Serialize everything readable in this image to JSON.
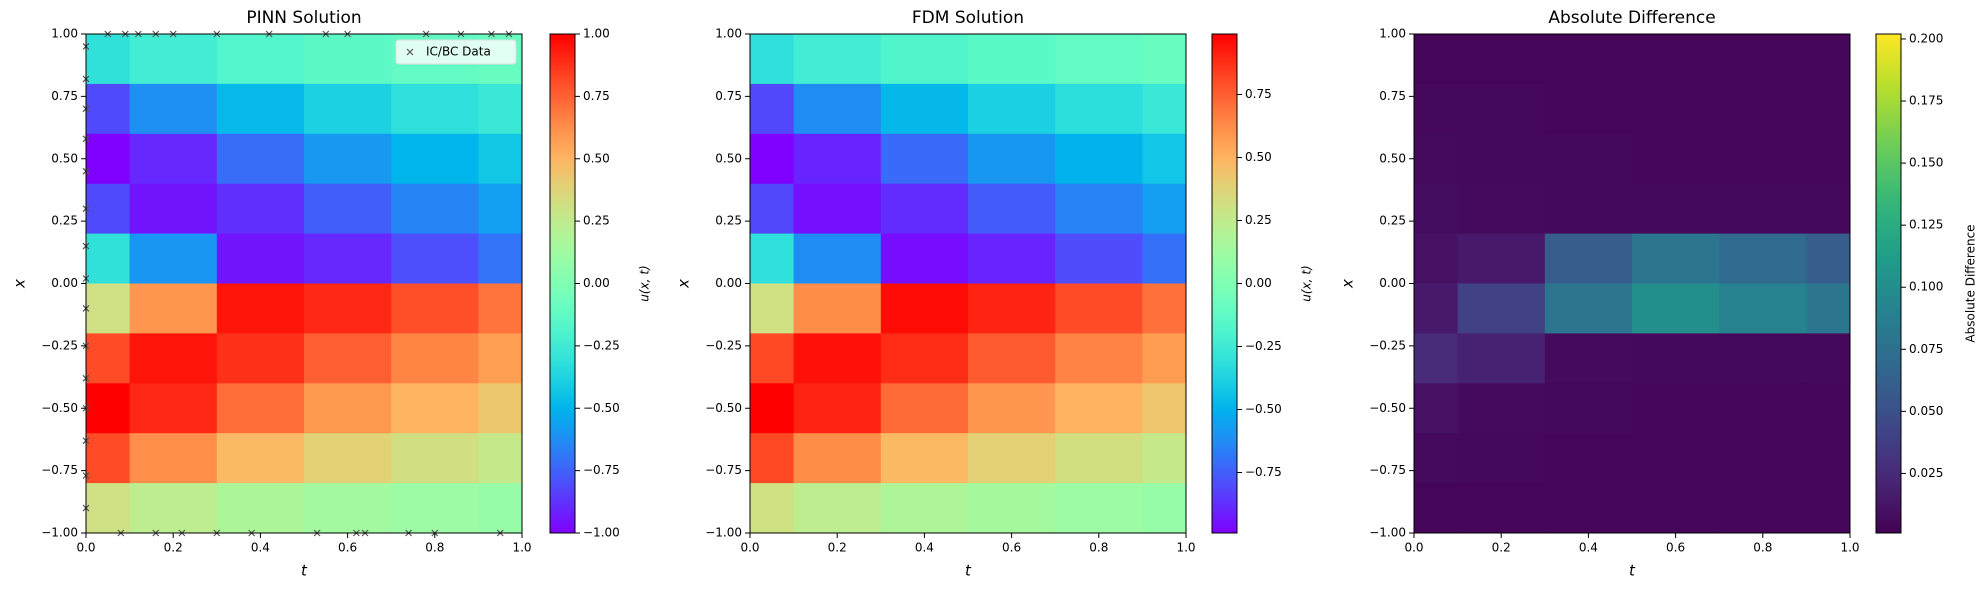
{
  "chart_data": [
    {
      "type": "heatmap",
      "title": "PINN Solution",
      "x_label": "t",
      "y_label": "x",
      "xlim": [
        0,
        1
      ],
      "ylim": [
        -1,
        1
      ],
      "xticks": [
        {
          "value": 0,
          "label": "0.0"
        },
        0.2,
        0.4,
        0.6,
        0.8,
        {
          "value": 1,
          "label": "1.0"
        }
      ],
      "yticks": [
        {
          "value": 1,
          "label": "1.00"
        },
        0.75,
        {
          "value": 0.5,
          "label": "0.50"
        },
        0.25,
        {
          "value": 0,
          "label": "0.00"
        },
        {
          "value": -0.25,
          "label": "−0.25"
        },
        {
          "value": -0.5,
          "label": "−0.50"
        },
        {
          "value": -0.75,
          "label": "−0.75"
        },
        {
          "value": -1,
          "label": "−1.00"
        }
      ],
      "x": [
        0,
        0.2,
        0.4,
        0.6,
        0.8,
        1
      ],
      "y": [
        0.9,
        0.7,
        0.5,
        0.3,
        0.1,
        -0.1,
        -0.3,
        -0.5,
        -0.7,
        -0.9
      ],
      "z": [
        [
          -0.31,
          -0.24,
          -0.18,
          -0.14,
          -0.11,
          -0.09
        ],
        [
          -0.81,
          -0.62,
          -0.48,
          -0.39,
          -0.32,
          -0.27
        ],
        [
          -1.0,
          -0.9,
          -0.72,
          -0.59,
          -0.5,
          -0.43
        ],
        [
          -0.81,
          -0.95,
          -0.88,
          -0.76,
          -0.65,
          -0.57
        ],
        [
          -0.31,
          -0.6,
          -0.95,
          -0.9,
          -0.8,
          -0.7
        ],
        [
          0.31,
          0.6,
          0.95,
          0.9,
          0.8,
          0.7
        ],
        [
          0.81,
          0.95,
          0.88,
          0.76,
          0.65,
          0.57
        ],
        [
          1.0,
          0.9,
          0.72,
          0.59,
          0.5,
          0.43
        ],
        [
          0.81,
          0.62,
          0.48,
          0.39,
          0.32,
          0.27
        ],
        [
          0.31,
          0.24,
          0.18,
          0.14,
          0.11,
          0.09
        ]
      ],
      "colormap": "rainbow",
      "colorbar": {
        "label": "u(x, t)",
        "lim": [
          -1,
          1
        ],
        "ticks": [
          {
            "value": -1,
            "label": "−1.00"
          },
          {
            "value": -0.75,
            "label": "−0.75"
          },
          {
            "value": -0.5,
            "label": "−0.50"
          },
          {
            "value": -0.25,
            "label": "−0.25"
          },
          {
            "value": 0,
            "label": "0.00"
          },
          0.25,
          {
            "value": 0.5,
            "label": "0.50"
          },
          0.75,
          {
            "value": 1,
            "label": "1.00"
          }
        ]
      },
      "markers": {
        "name": "IC/BC Data",
        "color": "#555555",
        "t": [
          0,
          0,
          0,
          0,
          0,
          0,
          0,
          0,
          0,
          0,
          0,
          0,
          0,
          0,
          0,
          0.05,
          0.09,
          0.12,
          0.16,
          0.2,
          0.3,
          0.42,
          0.55,
          0.6,
          0.78,
          0.86,
          0.93,
          0.97,
          0.08,
          0.16,
          0.22,
          0.3,
          0.38,
          0.53,
          0.62,
          0.64,
          0.74,
          0.8,
          0.95
        ],
        "x": [
          0.95,
          0.82,
          0.7,
          0.58,
          0.45,
          0.3,
          0.15,
          0.02,
          -0.1,
          -0.25,
          -0.38,
          -0.5,
          -0.63,
          -0.77,
          -0.9,
          1,
          1,
          1,
          1,
          1,
          1,
          1,
          1,
          1,
          1,
          1,
          1,
          1,
          -1,
          -1,
          -1,
          -1,
          -1,
          -1,
          -1,
          -1,
          -1,
          -1,
          -1
        ]
      },
      "legend": "upper right"
    },
    {
      "type": "heatmap",
      "title": "FDM Solution",
      "x_label": "t",
      "y_label": "x",
      "xlim": [
        0,
        1
      ],
      "ylim": [
        -1,
        1
      ],
      "xticks": [
        {
          "value": 0,
          "label": "0.0"
        },
        0.2,
        0.4,
        0.6,
        0.8,
        {
          "value": 1,
          "label": "1.0"
        }
      ],
      "yticks": [
        {
          "value": 1,
          "label": "1.00"
        },
        0.75,
        {
          "value": 0.5,
          "label": "0.50"
        },
        0.25,
        {
          "value": 0,
          "label": "0.00"
        },
        {
          "value": -0.25,
          "label": "−0.25"
        },
        {
          "value": -0.5,
          "label": "−0.50"
        },
        {
          "value": -0.75,
          "label": "−0.75"
        },
        {
          "value": -1,
          "label": "−1.00"
        }
      ],
      "x": [
        0,
        0.2,
        0.4,
        0.6,
        0.8,
        1
      ],
      "y": [
        0.9,
        0.7,
        0.5,
        0.3,
        0.1,
        -0.1,
        -0.3,
        -0.5,
        -0.7,
        -0.9
      ],
      "z": [
        [
          -0.31,
          -0.24,
          -0.18,
          -0.14,
          -0.11,
          -0.09
        ],
        [
          -0.81,
          -0.62,
          -0.48,
          -0.39,
          -0.32,
          -0.27
        ],
        [
          -0.99,
          -0.9,
          -0.72,
          -0.59,
          -0.5,
          -0.43
        ],
        [
          -0.81,
          -0.95,
          -0.88,
          -0.76,
          -0.65,
          -0.57
        ],
        [
          -0.31,
          -0.62,
          -0.96,
          -0.9,
          -0.8,
          -0.7
        ],
        [
          0.31,
          0.62,
          0.96,
          0.9,
          0.8,
          0.7
        ],
        [
          0.81,
          0.95,
          0.88,
          0.76,
          0.65,
          0.57
        ],
        [
          0.99,
          0.9,
          0.72,
          0.59,
          0.5,
          0.43
        ],
        [
          0.81,
          0.62,
          0.48,
          0.39,
          0.32,
          0.27
        ],
        [
          0.31,
          0.24,
          0.18,
          0.14,
          0.11,
          0.09
        ]
      ],
      "colormap": "rainbow",
      "colorbar": {
        "label": "u(x, t)",
        "lim": [
          -0.99,
          0.99
        ],
        "ticks": [
          {
            "value": -0.75,
            "label": "−0.75"
          },
          {
            "value": -0.5,
            "label": "−0.50"
          },
          {
            "value": -0.25,
            "label": "−0.25"
          },
          {
            "value": 0,
            "label": "0.00"
          },
          0.25,
          {
            "value": 0.5,
            "label": "0.50"
          },
          0.75
        ]
      }
    },
    {
      "type": "heatmap",
      "title": "Absolute Difference",
      "x_label": "t",
      "y_label": "x",
      "xlim": [
        0,
        1
      ],
      "ylim": [
        -1,
        1
      ],
      "xticks": [
        {
          "value": 0,
          "label": "0.0"
        },
        0.2,
        0.4,
        0.6,
        0.8,
        {
          "value": 1,
          "label": "1.0"
        }
      ],
      "yticks": [
        {
          "value": 1,
          "label": "1.00"
        },
        0.75,
        {
          "value": 0.5,
          "label": "0.50"
        },
        0.25,
        {
          "value": 0,
          "label": "0.00"
        },
        {
          "value": -0.25,
          "label": "−0.25"
        },
        {
          "value": -0.5,
          "label": "−0.50"
        },
        {
          "value": -0.75,
          "label": "−0.75"
        },
        {
          "value": -1,
          "label": "−1.00"
        }
      ],
      "x": [
        0,
        0.2,
        0.4,
        0.6,
        0.8,
        1
      ],
      "y": [
        0.9,
        0.7,
        0.5,
        0.3,
        0.1,
        -0.1,
        -0.3,
        -0.5,
        -0.7,
        -0.9
      ],
      "z": [
        [
          0.004,
          0.004,
          0.004,
          0.004,
          0.004,
          0.004
        ],
        [
          0.005,
          0.005,
          0.004,
          0.004,
          0.004,
          0.004
        ],
        [
          0.006,
          0.005,
          0.005,
          0.004,
          0.004,
          0.004
        ],
        [
          0.008,
          0.006,
          0.005,
          0.005,
          0.005,
          0.005
        ],
        [
          0.01,
          0.015,
          0.06,
          0.08,
          0.07,
          0.06
        ],
        [
          0.015,
          0.04,
          0.08,
          0.1,
          0.09,
          0.08
        ],
        [
          0.025,
          0.02,
          0.006,
          0.005,
          0.005,
          0.005
        ],
        [
          0.01,
          0.006,
          0.005,
          0.004,
          0.004,
          0.004
        ],
        [
          0.006,
          0.005,
          0.004,
          0.004,
          0.004,
          0.004
        ],
        [
          0.004,
          0.004,
          0.004,
          0.004,
          0.004,
          0.004
        ]
      ],
      "colormap": "viridis",
      "colorbar": {
        "label": "Absolute Difference",
        "lim": [
          0.001,
          0.202
        ],
        "ticks": [
          0.025,
          {
            "value": 0.05,
            "label": "0.050"
          },
          0.075,
          {
            "value": 0.1,
            "label": "0.100"
          },
          0.125,
          {
            "value": 0.15,
            "label": "0.150"
          },
          0.175,
          {
            "value": 0.2,
            "label": "0.200"
          }
        ]
      }
    }
  ]
}
